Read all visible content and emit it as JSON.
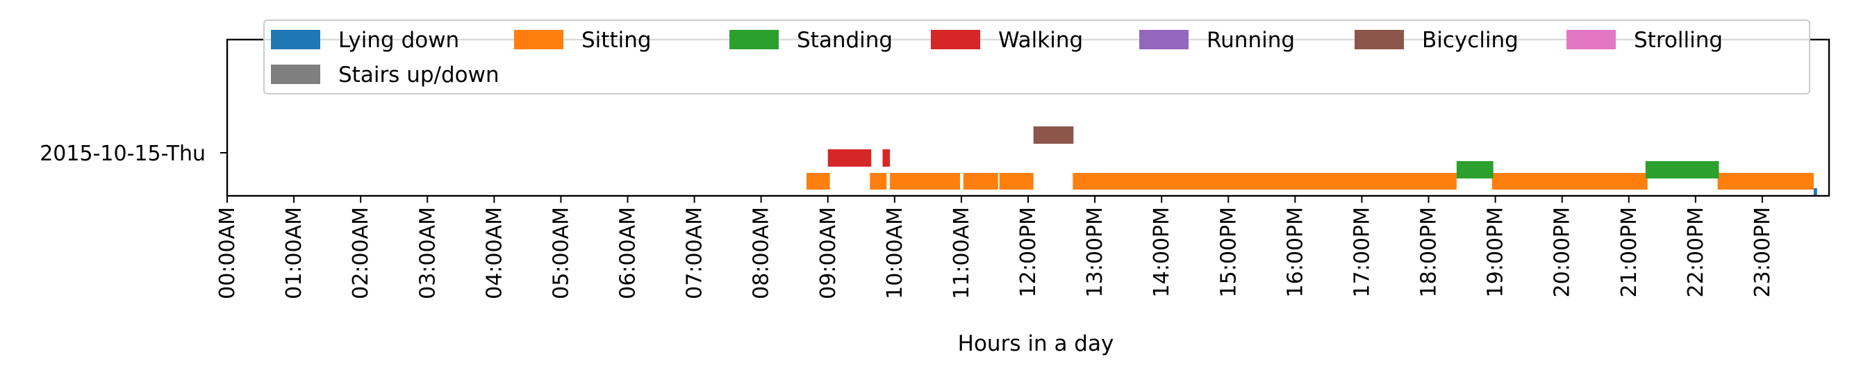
{
  "chart_data": {
    "type": "timeline",
    "title": "",
    "xlabel": "Hours in a day",
    "ylabel": "",
    "x_unit": "hours",
    "xlim": [
      0,
      24
    ],
    "x_ticks": [
      "00:00AM",
      "01:00AM",
      "02:00AM",
      "03:00AM",
      "04:00AM",
      "05:00AM",
      "06:00AM",
      "07:00AM",
      "08:00AM",
      "09:00AM",
      "10:00AM",
      "11:00AM",
      "12:00PM",
      "13:00PM",
      "14:00PM",
      "15:00PM",
      "16:00PM",
      "17:00PM",
      "18:00PM",
      "19:00PM",
      "20:00PM",
      "21:00PM",
      "22:00PM",
      "23:00PM"
    ],
    "y_categories": [
      "2015-10-15-Thu"
    ],
    "legend_placement": "top-center",
    "grid": false,
    "series": [
      {
        "name": "Lying down",
        "color": "#1f77b4",
        "segments": [
          [
            23.77,
            23.82
          ]
        ]
      },
      {
        "name": "Sitting",
        "color": "#ff7f0e",
        "segments": [
          [
            8.68,
            9.03
          ],
          [
            9.63,
            9.88
          ],
          [
            9.93,
            10.98
          ],
          [
            11.03,
            11.55
          ],
          [
            11.57,
            12.08
          ],
          [
            12.67,
            18.42
          ],
          [
            18.95,
            21.28
          ],
          [
            22.33,
            23.77
          ]
        ]
      },
      {
        "name": "Standing",
        "color": "#2ca02c",
        "segments": [
          [
            18.42,
            18.97
          ],
          [
            21.25,
            22.35
          ]
        ]
      },
      {
        "name": "Walking",
        "color": "#d62728",
        "segments": [
          [
            9.0,
            9.65
          ],
          [
            9.82,
            9.93
          ]
        ]
      },
      {
        "name": "Running",
        "color": "#9467bd",
        "segments": []
      },
      {
        "name": "Bicycling",
        "color": "#8c564b",
        "segments": [
          [
            12.08,
            12.68
          ]
        ]
      },
      {
        "name": "Strolling",
        "color": "#e377c2",
        "segments": []
      },
      {
        "name": "Stairs up/down",
        "color": "#7f7f7f",
        "segments": []
      }
    ]
  }
}
